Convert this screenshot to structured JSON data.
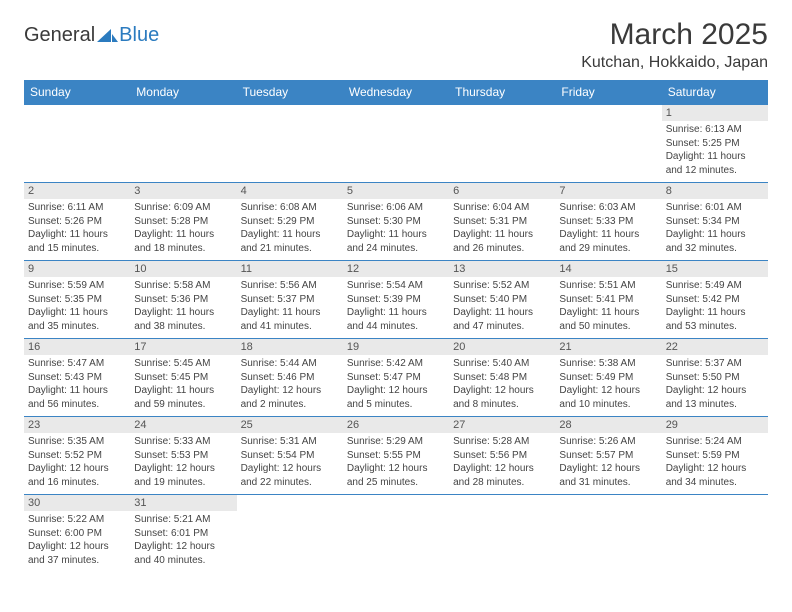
{
  "logo": {
    "text_left": "General",
    "text_right": "Blue",
    "accent_color": "#2b7bbf"
  },
  "title": "March 2025",
  "location": "Kutchan, Hokkaido, Japan",
  "header_bg": "#3b84c4",
  "border_color": "#3b84c4",
  "daynum_bg": "#e9e9e9",
  "days_of_week": [
    "Sunday",
    "Monday",
    "Tuesday",
    "Wednesday",
    "Thursday",
    "Friday",
    "Saturday"
  ],
  "grid": [
    [
      null,
      null,
      null,
      null,
      null,
      null,
      {
        "n": "1",
        "sr": "6:13 AM",
        "ss": "5:25 PM",
        "dl": "11 hours and 12 minutes."
      }
    ],
    [
      {
        "n": "2",
        "sr": "6:11 AM",
        "ss": "5:26 PM",
        "dl": "11 hours and 15 minutes."
      },
      {
        "n": "3",
        "sr": "6:09 AM",
        "ss": "5:28 PM",
        "dl": "11 hours and 18 minutes."
      },
      {
        "n": "4",
        "sr": "6:08 AM",
        "ss": "5:29 PM",
        "dl": "11 hours and 21 minutes."
      },
      {
        "n": "5",
        "sr": "6:06 AM",
        "ss": "5:30 PM",
        "dl": "11 hours and 24 minutes."
      },
      {
        "n": "6",
        "sr": "6:04 AM",
        "ss": "5:31 PM",
        "dl": "11 hours and 26 minutes."
      },
      {
        "n": "7",
        "sr": "6:03 AM",
        "ss": "5:33 PM",
        "dl": "11 hours and 29 minutes."
      },
      {
        "n": "8",
        "sr": "6:01 AM",
        "ss": "5:34 PM",
        "dl": "11 hours and 32 minutes."
      }
    ],
    [
      {
        "n": "9",
        "sr": "5:59 AM",
        "ss": "5:35 PM",
        "dl": "11 hours and 35 minutes."
      },
      {
        "n": "10",
        "sr": "5:58 AM",
        "ss": "5:36 PM",
        "dl": "11 hours and 38 minutes."
      },
      {
        "n": "11",
        "sr": "5:56 AM",
        "ss": "5:37 PM",
        "dl": "11 hours and 41 minutes."
      },
      {
        "n": "12",
        "sr": "5:54 AM",
        "ss": "5:39 PM",
        "dl": "11 hours and 44 minutes."
      },
      {
        "n": "13",
        "sr": "5:52 AM",
        "ss": "5:40 PM",
        "dl": "11 hours and 47 minutes."
      },
      {
        "n": "14",
        "sr": "5:51 AM",
        "ss": "5:41 PM",
        "dl": "11 hours and 50 minutes."
      },
      {
        "n": "15",
        "sr": "5:49 AM",
        "ss": "5:42 PM",
        "dl": "11 hours and 53 minutes."
      }
    ],
    [
      {
        "n": "16",
        "sr": "5:47 AM",
        "ss": "5:43 PM",
        "dl": "11 hours and 56 minutes."
      },
      {
        "n": "17",
        "sr": "5:45 AM",
        "ss": "5:45 PM",
        "dl": "11 hours and 59 minutes."
      },
      {
        "n": "18",
        "sr": "5:44 AM",
        "ss": "5:46 PM",
        "dl": "12 hours and 2 minutes."
      },
      {
        "n": "19",
        "sr": "5:42 AM",
        "ss": "5:47 PM",
        "dl": "12 hours and 5 minutes."
      },
      {
        "n": "20",
        "sr": "5:40 AM",
        "ss": "5:48 PM",
        "dl": "12 hours and 8 minutes."
      },
      {
        "n": "21",
        "sr": "5:38 AM",
        "ss": "5:49 PM",
        "dl": "12 hours and 10 minutes."
      },
      {
        "n": "22",
        "sr": "5:37 AM",
        "ss": "5:50 PM",
        "dl": "12 hours and 13 minutes."
      }
    ],
    [
      {
        "n": "23",
        "sr": "5:35 AM",
        "ss": "5:52 PM",
        "dl": "12 hours and 16 minutes."
      },
      {
        "n": "24",
        "sr": "5:33 AM",
        "ss": "5:53 PM",
        "dl": "12 hours and 19 minutes."
      },
      {
        "n": "25",
        "sr": "5:31 AM",
        "ss": "5:54 PM",
        "dl": "12 hours and 22 minutes."
      },
      {
        "n": "26",
        "sr": "5:29 AM",
        "ss": "5:55 PM",
        "dl": "12 hours and 25 minutes."
      },
      {
        "n": "27",
        "sr": "5:28 AM",
        "ss": "5:56 PM",
        "dl": "12 hours and 28 minutes."
      },
      {
        "n": "28",
        "sr": "5:26 AM",
        "ss": "5:57 PM",
        "dl": "12 hours and 31 minutes."
      },
      {
        "n": "29",
        "sr": "5:24 AM",
        "ss": "5:59 PM",
        "dl": "12 hours and 34 minutes."
      }
    ],
    [
      {
        "n": "30",
        "sr": "5:22 AM",
        "ss": "6:00 PM",
        "dl": "12 hours and 37 minutes."
      },
      {
        "n": "31",
        "sr": "5:21 AM",
        "ss": "6:01 PM",
        "dl": "12 hours and 40 minutes."
      },
      null,
      null,
      null,
      null,
      null
    ]
  ],
  "labels": {
    "sunrise": "Sunrise:",
    "sunset": "Sunset:",
    "daylight": "Daylight:"
  }
}
